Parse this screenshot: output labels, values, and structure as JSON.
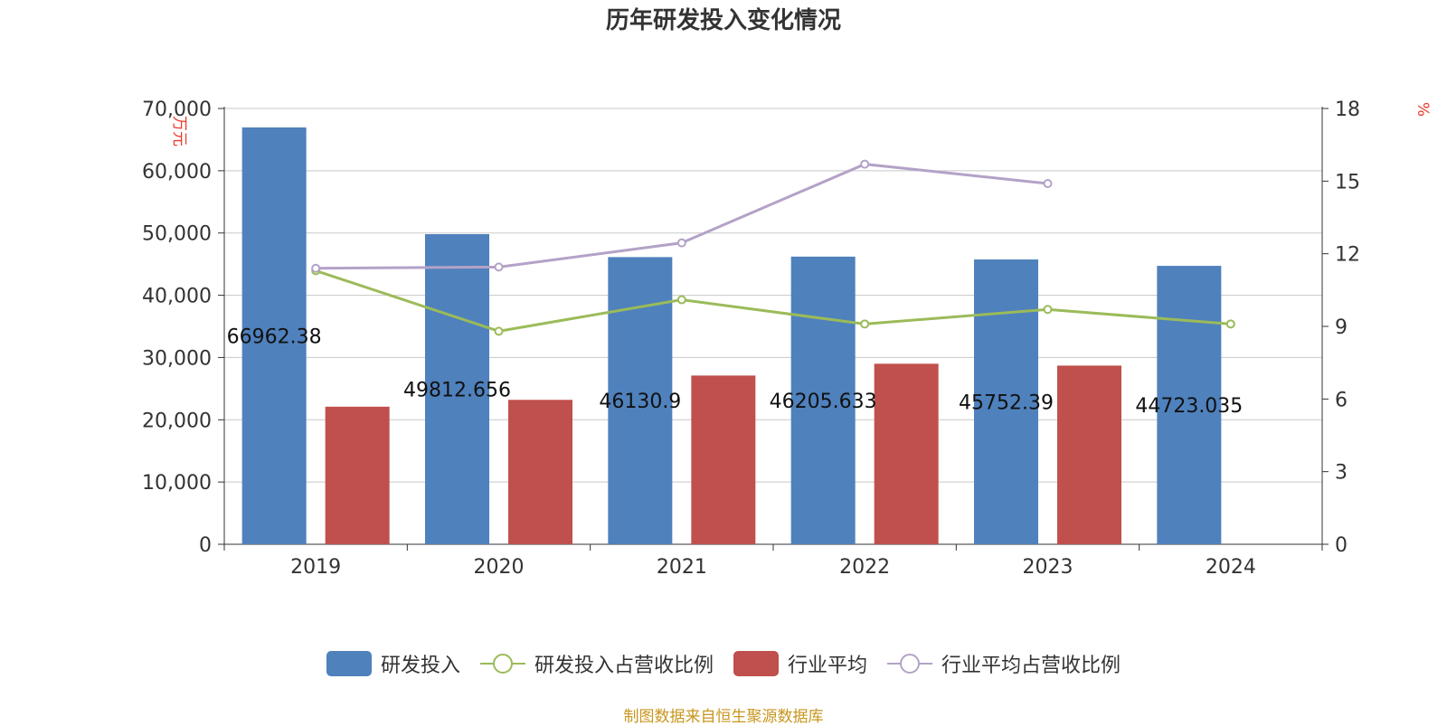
{
  "chart_data": {
    "type": "bar",
    "title": "历年研发投入变化情况",
    "categories": [
      "2019",
      "2020",
      "2021",
      "2022",
      "2023",
      "2024"
    ],
    "y_left": {
      "label": "万元",
      "range": [
        0,
        70000
      ],
      "ticks": [
        0,
        10000,
        20000,
        30000,
        40000,
        50000,
        60000,
        70000
      ],
      "tick_labels": [
        "0",
        "10,000",
        "20,000",
        "30,000",
        "40,000",
        "50,000",
        "60,000",
        "70,000"
      ]
    },
    "y_right": {
      "label": "%",
      "range": [
        0,
        18
      ],
      "ticks": [
        0,
        3,
        6,
        9,
        12,
        15,
        18
      ],
      "tick_labels": [
        "0",
        "3",
        "6",
        "9",
        "12",
        "15",
        "18"
      ]
    },
    "grid": true,
    "legend_position": "bottom",
    "series": [
      {
        "name": "研发投入",
        "type": "bar",
        "axis": "left",
        "color": "#4f81bd",
        "values": [
          66962.38,
          49812.656,
          46130.9,
          46205.633,
          45752.39,
          44723.035
        ],
        "data_labels": [
          "66962.38",
          "49812.656",
          "46130.9",
          "46205.633",
          "45752.39",
          "44723.035"
        ]
      },
      {
        "name": "研发投入占营收比例",
        "type": "line",
        "axis": "right",
        "color": "#9bbb59",
        "values": [
          11.3,
          8.8,
          10.1,
          9.1,
          9.7,
          9.1
        ]
      },
      {
        "name": "行业平均",
        "type": "bar",
        "axis": "left",
        "color": "#c0504d",
        "values": [
          22100,
          23200,
          27100,
          29000,
          28700,
          null
        ]
      },
      {
        "name": "行业平均占营收比例",
        "type": "line",
        "axis": "right",
        "color": "#b3a2c7",
        "values": [
          11.4,
          11.45,
          12.45,
          15.7,
          14.9,
          null
        ]
      }
    ]
  },
  "legend": [
    {
      "label": "研发投入",
      "kind": "bar",
      "color": "#4f81bd"
    },
    {
      "label": "研发投入占营收比例",
      "kind": "line",
      "color": "#9bbb59"
    },
    {
      "label": "行业平均",
      "kind": "bar",
      "color": "#c0504d"
    },
    {
      "label": "行业平均占营收比例",
      "kind": "line",
      "color": "#b3a2c7"
    }
  ],
  "source_note": "制图数据来自恒生聚源数据库",
  "colors": {
    "axis_unit": "#e8392b",
    "grid": "#c8c8c8",
    "text": "#333333"
  }
}
